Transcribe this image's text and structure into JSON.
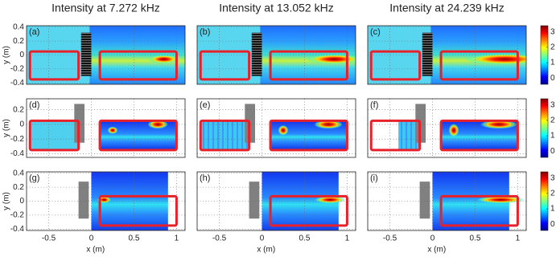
{
  "chart_data": {
    "type": "heatmap-grid",
    "titles": [
      "Intensity at 7.272 kHz",
      "Intensity at 13.052 kHz",
      "Intensity at 24.239 kHz"
    ],
    "panel_labels": [
      "(a)",
      "(b)",
      "(c)",
      "(d)",
      "(e)",
      "(f)",
      "(g)",
      "(h)",
      "(i)"
    ],
    "x_label": "x (m)",
    "y_label": "y (m)",
    "xlim": [
      -0.76,
      1.1
    ],
    "xticks": [
      -0.5,
      0,
      0.5,
      1
    ],
    "rows": [
      {
        "ylim": [
          -0.42,
          0.42
        ],
        "yticks": [
          0.4,
          0.2,
          0,
          -0.2,
          -0.4
        ],
        "clim": [
          -0.4,
          3.4
        ],
        "cticks": [
          0,
          1,
          2,
          3
        ]
      },
      {
        "ylim": [
          -0.45,
          0.35
        ],
        "yticks": [
          0.2,
          0,
          -0.2,
          -0.4
        ],
        "clim": [
          -0.4,
          3.4
        ],
        "cticks": [
          0,
          1,
          2,
          3
        ]
      },
      {
        "ylim": [
          -0.42,
          0.42
        ],
        "yticks": [
          0.4,
          0.2,
          0,
          -0.2,
          -0.4
        ],
        "clim": [
          -0.4,
          3.4
        ],
        "cticks": [
          0,
          1,
          2,
          3
        ]
      }
    ],
    "grid": true
  }
}
